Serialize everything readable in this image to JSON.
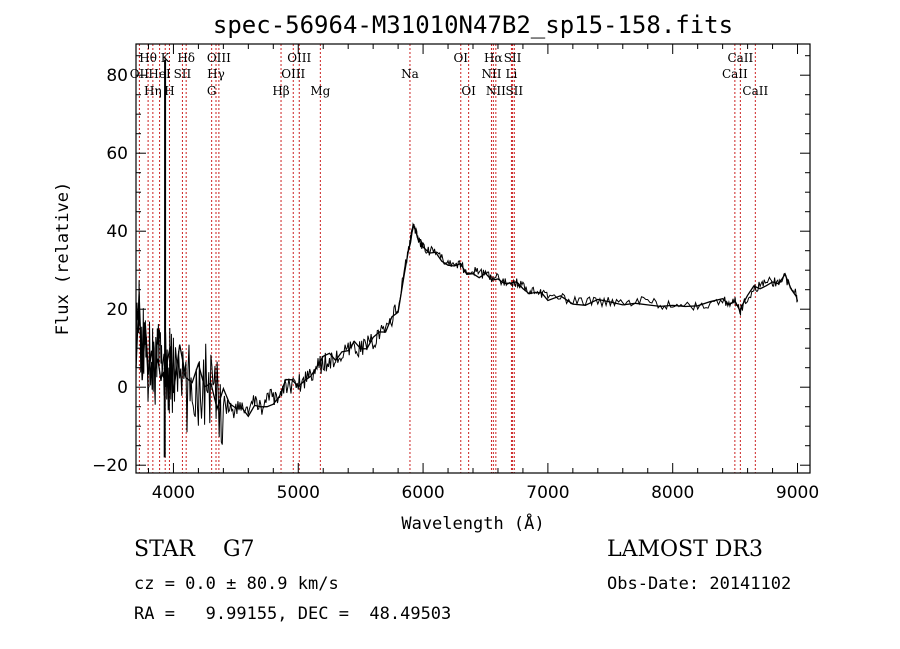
{
  "chart_data": {
    "type": "line",
    "title": "spec-56964-M31010N47B2_sp15-158.fits",
    "xlabel": "Wavelength (Å)",
    "ylabel": "Flux (relative)",
    "xlim": [
      3700,
      9100
    ],
    "ylim": [
      -22,
      88
    ],
    "xticks": [
      4000,
      5000,
      6000,
      7000,
      8000,
      9000
    ],
    "yticks": [
      -20,
      0,
      20,
      40,
      60,
      80
    ],
    "grid": false,
    "series": [
      {
        "name": "flux",
        "x": [
          3700,
          3725,
          3750,
          3775,
          3800,
          3825,
          3850,
          3875,
          3900,
          3925,
          3950,
          3975,
          4000,
          4050,
          4100,
          4150,
          4200,
          4250,
          4300,
          4350,
          4400,
          4450,
          4500,
          4550,
          4600,
          4650,
          4700,
          4750,
          4800,
          4850,
          4900,
          4950,
          5000,
          5050,
          5100,
          5150,
          5200,
          5250,
          5300,
          5350,
          5400,
          5450,
          5500,
          5550,
          5600,
          5650,
          5700,
          5750,
          5800,
          5850,
          5880,
          5900,
          5920,
          5940,
          5960,
          5980,
          6000,
          6050,
          6100,
          6150,
          6200,
          6250,
          6300,
          6350,
          6400,
          6450,
          6500,
          6550,
          6600,
          6650,
          6700,
          6750,
          6800,
          6850,
          6900,
          6950,
          7000,
          7100,
          7200,
          7300,
          7400,
          7500,
          7600,
          7700,
          7800,
          7900,
          8000,
          8100,
          8200,
          8300,
          8400,
          8450,
          8500,
          8540,
          8550,
          8600,
          8650,
          8700,
          8750,
          8800,
          8850,
          8900,
          8950,
          8990,
          9000
        ],
        "y": [
          12,
          18,
          8,
          15,
          5,
          10,
          2,
          12,
          4,
          8,
          0,
          6,
          3,
          4,
          -2,
          2,
          0,
          1,
          -1,
          -3,
          -4,
          -5,
          -6,
          -5,
          -6,
          -4,
          -5,
          -3,
          -3,
          -2,
          0,
          1,
          1,
          2,
          4,
          5,
          6,
          7,
          7,
          8,
          9,
          10,
          10,
          11,
          12,
          13,
          15,
          18,
          20,
          30,
          35,
          38,
          41,
          40,
          38,
          37,
          36,
          35,
          35,
          33,
          32,
          32,
          31,
          30,
          30,
          29,
          29,
          28,
          28,
          27,
          27,
          27,
          26,
          25,
          25,
          24,
          23,
          23,
          22,
          22,
          22,
          22,
          22,
          22,
          22,
          21,
          21,
          21,
          21,
          21,
          22,
          22,
          22,
          19,
          20,
          23,
          25,
          26,
          27,
          27,
          27,
          28,
          26,
          24,
          22
        ]
      }
    ],
    "spikes": [
      {
        "x": 3933,
        "from": 0,
        "to": 84
      },
      {
        "x": 3930,
        "from": 5,
        "to": -18
      }
    ],
    "line_markers": [
      {
        "label": "Hθ",
        "x": 3797,
        "row": 1
      },
      {
        "label": "OII",
        "x": 3727,
        "row": 2
      },
      {
        "label": "Hη",
        "x": 3835,
        "row": 3
      },
      {
        "label": "HeI",
        "x": 3889,
        "row": 2
      },
      {
        "label": "K",
        "x": 3934,
        "row": 1
      },
      {
        "label": "H",
        "x": 3968,
        "row": 3
      },
      {
        "label": "SII",
        "x": 4072,
        "row": 2
      },
      {
        "label": "Hδ",
        "x": 4102,
        "row": 1
      },
      {
        "label": "G",
        "x": 4306,
        "row": 3
      },
      {
        "label": "Hγ",
        "x": 4341,
        "row": 2
      },
      {
        "label": "OIII",
        "x": 4364,
        "row": 1
      },
      {
        "label": "Hβ",
        "x": 4862,
        "row": 3
      },
      {
        "label": "OIII",
        "x": 4960,
        "row": 2
      },
      {
        "label": "OIII",
        "x": 5008,
        "row": 1
      },
      {
        "label": "Mg",
        "x": 5177,
        "row": 3
      },
      {
        "label": "Na",
        "x": 5895,
        "row": 2
      },
      {
        "label": "OI",
        "x": 6302,
        "row": 1
      },
      {
        "label": "OI",
        "x": 6365,
        "row": 3
      },
      {
        "label": "NII",
        "x": 6548,
        "row": 2
      },
      {
        "label": "Hα",
        "x": 6563,
        "row": 1
      },
      {
        "label": "NII",
        "x": 6583,
        "row": 3
      },
      {
        "label": "SII",
        "x": 6717,
        "row": 1
      },
      {
        "label": "Li",
        "x": 6708,
        "row": 2
      },
      {
        "label": "SII",
        "x": 6731,
        "row": 3
      },
      {
        "label": "CaII",
        "x": 8498,
        "row": 2
      },
      {
        "label": "CaII",
        "x": 8542,
        "row": 1
      },
      {
        "label": "CaII",
        "x": 8662,
        "row": 3
      }
    ]
  },
  "info": {
    "object_class": "STAR    G7",
    "survey": "LAMOST DR3",
    "redshift": "cz = 0.0 ± 80.9 km/s",
    "obs_date": "Obs-Date: 20141102",
    "coordinates": "RA =   9.99155, DEC =  48.49503"
  }
}
